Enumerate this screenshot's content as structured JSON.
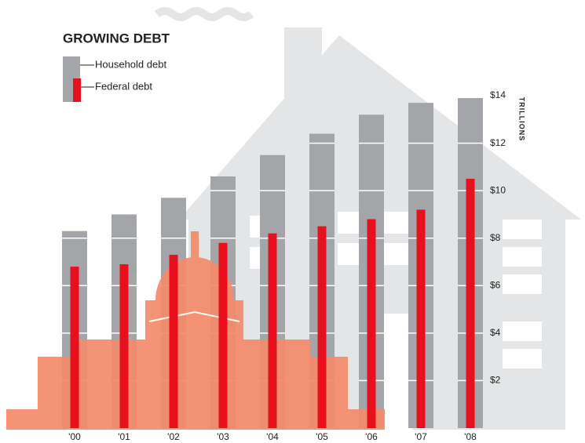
{
  "chart_data": {
    "type": "bar",
    "title": "GROWING DEBT",
    "y_label": "TRILLIONS",
    "categories": [
      "'00",
      "'01",
      "'02",
      "'03",
      "'04",
      "'05",
      "'06",
      "'07",
      "'08"
    ],
    "series": [
      {
        "name": "Household debt",
        "color": "#a3a5a8",
        "values": [
          8.3,
          9.0,
          9.7,
          10.6,
          11.5,
          12.4,
          13.2,
          13.7,
          13.9
        ]
      },
      {
        "name": "Federal debt",
        "color": "#e8101c",
        "values": [
          6.8,
          6.9,
          7.3,
          7.8,
          8.2,
          8.5,
          8.8,
          9.2,
          10.5
        ]
      }
    ],
    "ylim": [
      0,
      14.2
    ],
    "yticks": [
      {
        "value": 2,
        "label": "$2"
      },
      {
        "value": 4,
        "label": "$4"
      },
      {
        "value": 6,
        "label": "$6"
      },
      {
        "value": 8,
        "label": "$8"
      },
      {
        "value": 10,
        "label": "$10"
      },
      {
        "value": 12,
        "label": "$12"
      },
      {
        "value": 14,
        "label": "$14"
      }
    ],
    "grid": true,
    "grid_color": "#ffffff",
    "legend": "top-left"
  }
}
